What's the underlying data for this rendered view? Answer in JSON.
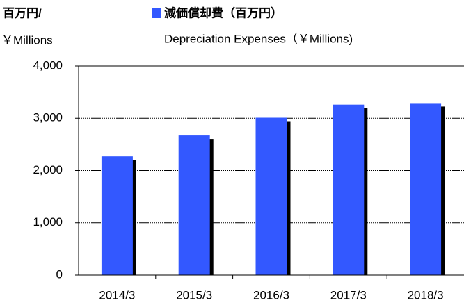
{
  "chart_data": {
    "type": "bar",
    "ylabel": [
      "百万円/",
      "￥Millions"
    ],
    "series": [
      {
        "name": "減価償却費（百万円）",
        "name_en": "Depreciation Expenses（￥Millions)",
        "color": "#3358ff",
        "values": [
          2270,
          2670,
          3010,
          3260,
          3290
        ]
      }
    ],
    "categories": [
      "2014/3",
      "2015/3",
      "2016/3",
      "2017/3",
      "2018/3"
    ],
    "ylim": [
      0,
      4000
    ],
    "yticks": [
      0,
      {
        "value": 1000,
        "label": "1,000"
      },
      {
        "value": 2000,
        "label": "2,000"
      },
      {
        "value": 3000,
        "label": "3,000"
      },
      {
        "value": 4000,
        "label": "4,000"
      }
    ],
    "grid": true,
    "shadow_color": "#000000"
  }
}
